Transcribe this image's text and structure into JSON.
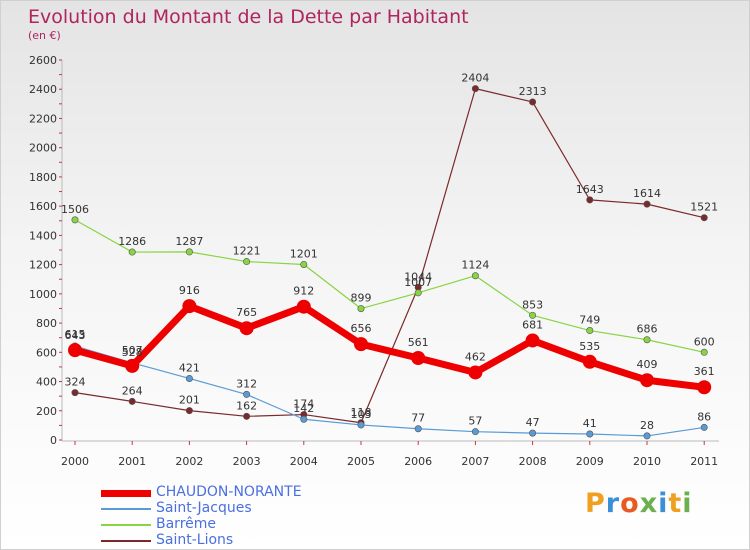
{
  "title": "Evolution du Montant de la Dette par Habitant",
  "unit_label": "(en €)",
  "logo_text": "Proxiti",
  "chart_data": {
    "type": "line",
    "categories": [
      "2000",
      "2001",
      "2002",
      "2003",
      "2004",
      "2005",
      "2006",
      "2007",
      "2008",
      "2009",
      "2010",
      "2011"
    ],
    "ylim": [
      0,
      2600
    ],
    "yticks": [
      0,
      200,
      400,
      600,
      800,
      1000,
      1200,
      1400,
      1600,
      1800,
      2000,
      2200,
      2400,
      2600
    ],
    "grid": false,
    "legend_position": "bottom-left",
    "series": [
      {
        "name": "CHAUDON-NORANTE",
        "color": "#ee0000",
        "values": [
          615,
          507,
          916,
          765,
          912,
          656,
          561,
          462,
          681,
          535,
          409,
          361
        ]
      },
      {
        "name": "Saint-Jacques",
        "color": "#5a9bd5",
        "values": [
          643,
          528,
          421,
          312,
          142,
          103,
          77,
          57,
          47,
          41,
          28,
          86
        ]
      },
      {
        "name": "Barrême",
        "color": "#88d443",
        "values": [
          1506,
          1286,
          1287,
          1221,
          1201,
          899,
          1007,
          1124,
          853,
          749,
          686,
          600
        ]
      },
      {
        "name": "Saint-Lions",
        "color": "#7a2a2a",
        "values": [
          324,
          264,
          201,
          162,
          174,
          118,
          1044,
          2404,
          2313,
          1643,
          1614,
          1521
        ]
      }
    ]
  }
}
